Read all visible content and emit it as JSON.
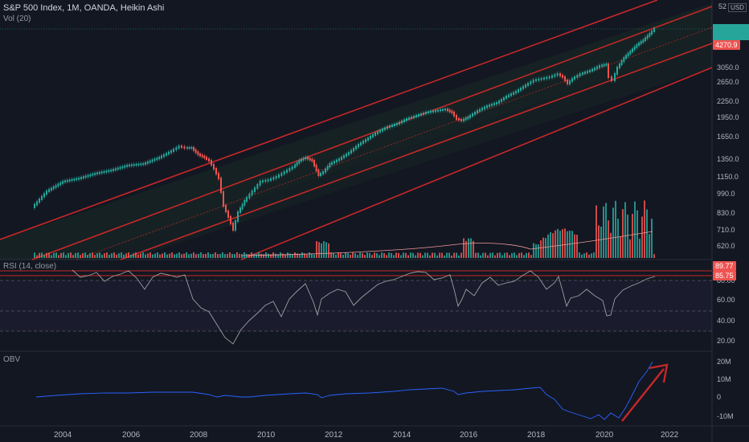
{
  "header": {
    "symbol_line": "S&P 500 Index, 1M, OANDA, Heikin Ashi",
    "volume_label": "Vol (20)",
    "currency": "USD"
  },
  "price_axis": {
    "ticks": [
      "3050.0",
      "2650.0",
      "2250.0",
      "1950.0",
      "1650.0",
      "1350.0",
      "1150.0",
      "990.0",
      "830.0",
      "710.0",
      "620.0"
    ],
    "last_price": "4270.9",
    "top_label": "52"
  },
  "rsi": {
    "label": "RSI (14, close)",
    "ticks": [
      "80.00",
      "60.00",
      "40.00",
      "20.00"
    ],
    "value_a": "89.77",
    "value_b": "85.75"
  },
  "obv": {
    "label": "OBV",
    "ticks": [
      "20M",
      "10M",
      "0",
      "-10M"
    ]
  },
  "time_axis": {
    "labels": [
      "2004",
      "2006",
      "2008",
      "2010",
      "2012",
      "2014",
      "2016",
      "2018",
      "2020",
      "2022"
    ]
  },
  "colors": {
    "up": "#26a69a",
    "down": "#ef5350",
    "channel": "#c62828",
    "background": "#131722",
    "rsi": "#9e9e9e",
    "obv": "#2962ff",
    "arrow": "#c62828"
  }
}
